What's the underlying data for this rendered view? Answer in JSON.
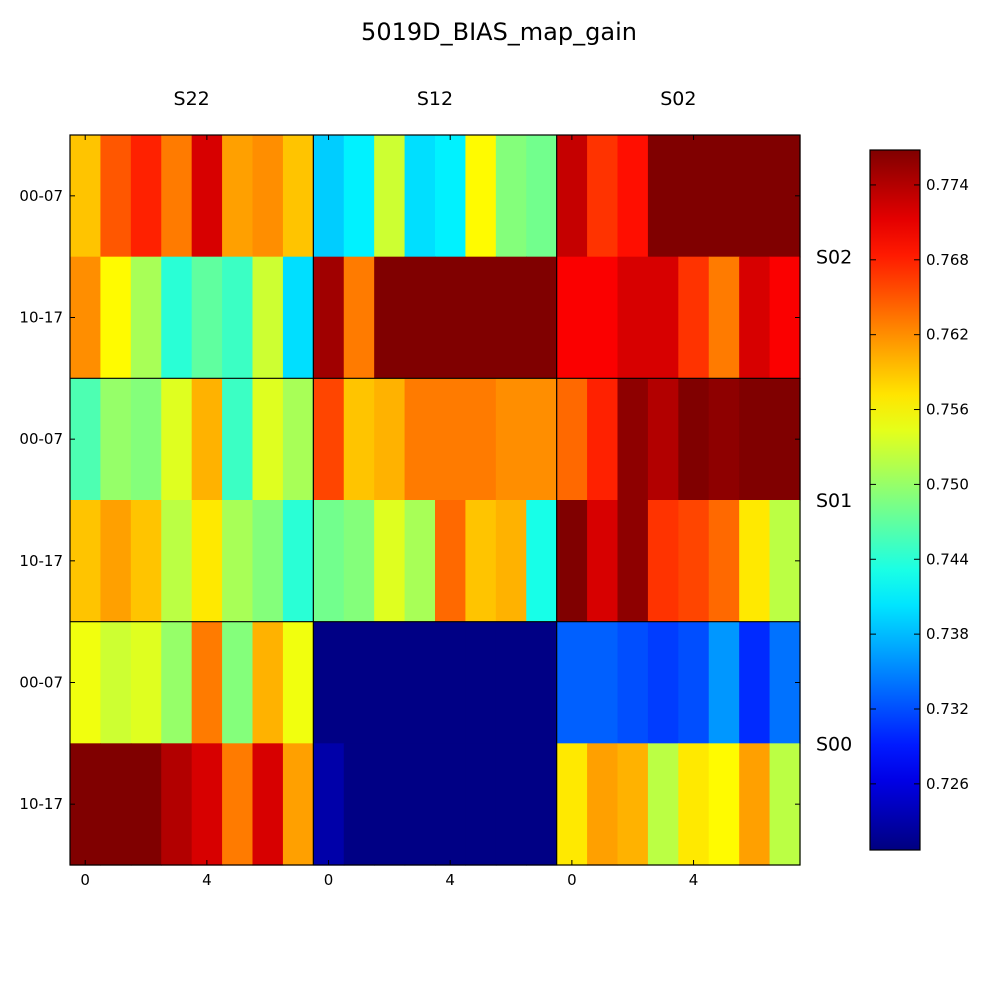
{
  "chart_data": {
    "type": "heatmap",
    "title": "5019D_BIAS_map_gain",
    "column_groups": [
      "S22",
      "S12",
      "S02"
    ],
    "row_groups": [
      "S02",
      "S01",
      "S00"
    ],
    "row_labels": [
      "00-07",
      "10-17",
      "00-07",
      "10-17",
      "00-07",
      "10-17"
    ],
    "x_tick_labels": [
      "0",
      "4"
    ],
    "x_tick_values": [
      0,
      4
    ],
    "colorbar": {
      "colormap": "jet",
      "min": 0.7207,
      "max": 0.7768,
      "ticks": [
        0.726,
        0.732,
        0.738,
        0.744,
        0.75,
        0.756,
        0.762,
        0.768,
        0.774
      ],
      "tick_labels": [
        "0.726",
        "0.732",
        "0.738",
        "0.744",
        "0.750",
        "0.756",
        "0.762",
        "0.768",
        "0.774"
      ]
    },
    "values": [
      [
        0.759,
        0.765,
        0.768,
        0.763,
        0.772,
        0.761,
        0.762,
        0.759,
        0.739,
        0.741,
        0.753,
        0.74,
        0.741,
        0.756,
        0.749,
        0.748,
        0.773,
        0.767,
        0.769,
        0.777,
        0.777,
        0.777,
        0.777,
        0.777
      ],
      [
        0.762,
        0.756,
        0.751,
        0.744,
        0.747,
        0.745,
        0.753,
        0.74,
        0.775,
        0.763,
        0.777,
        0.777,
        0.777,
        0.777,
        0.777,
        0.777,
        0.77,
        0.77,
        0.772,
        0.772,
        0.767,
        0.763,
        0.772,
        0.77
      ],
      [
        0.746,
        0.75,
        0.749,
        0.754,
        0.76,
        0.745,
        0.754,
        0.751,
        0.766,
        0.759,
        0.76,
        0.763,
        0.763,
        0.763,
        0.762,
        0.762,
        0.764,
        0.768,
        0.776,
        0.774,
        0.777,
        0.776,
        0.777,
        0.777
      ],
      [
        0.759,
        0.761,
        0.759,
        0.752,
        0.757,
        0.751,
        0.749,
        0.744,
        0.748,
        0.749,
        0.754,
        0.751,
        0.764,
        0.759,
        0.76,
        0.743,
        0.777,
        0.772,
        0.776,
        0.767,
        0.766,
        0.764,
        0.757,
        0.752
      ],
      [
        0.755,
        0.753,
        0.754,
        0.75,
        0.763,
        0.749,
        0.76,
        0.755,
        0.721,
        0.721,
        0.721,
        0.721,
        0.721,
        0.721,
        0.721,
        0.721,
        0.733,
        0.733,
        0.732,
        0.731,
        0.732,
        0.736,
        0.73,
        0.734
      ],
      [
        0.777,
        0.777,
        0.777,
        0.774,
        0.772,
        0.763,
        0.772,
        0.761,
        0.723,
        0.721,
        0.721,
        0.721,
        0.721,
        0.721,
        0.721,
        0.721,
        0.757,
        0.761,
        0.76,
        0.752,
        0.757,
        0.756,
        0.761,
        0.752
      ]
    ]
  }
}
